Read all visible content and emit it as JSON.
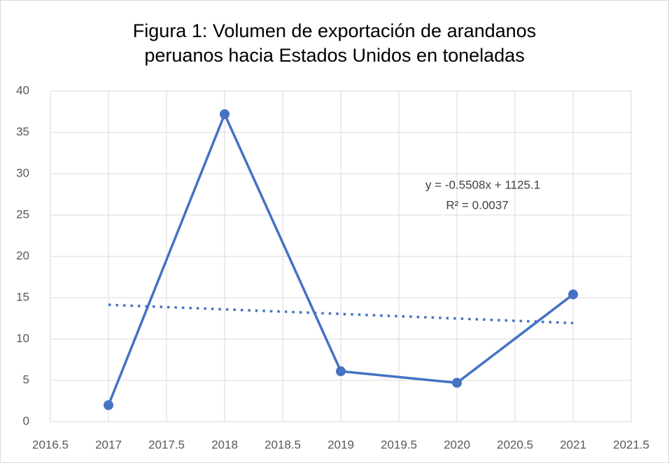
{
  "chart_data": {
    "type": "scatter_line",
    "title": [
      "Figura 1: Volumen de exportación de arandanos",
      "peruanos hacia Estados Unidos en toneladas"
    ],
    "x": [
      2017,
      2018,
      2019,
      2020,
      2021
    ],
    "series": [
      {
        "color": "#4472c4",
        "values": [
          2,
          37.2,
          6.1,
          4.7,
          15.4
        ]
      }
    ],
    "trendline": {
      "x": [
        2017,
        2021
      ],
      "values": [
        14.14,
        11.93
      ],
      "color": "#4472c4",
      "equation": "y = -0.5508x + 1125.1",
      "r2": "R² = 0.0037"
    },
    "xlim": [
      2016.5,
      2021.5
    ],
    "xticks": [
      2016.5,
      2017,
      2017.5,
      2018,
      2018.5,
      2019,
      2019.5,
      2020,
      2020.5,
      2021,
      2021.5
    ],
    "ylim": [
      0,
      40
    ],
    "yticks": [
      0,
      5,
      10,
      15,
      20,
      25,
      30,
      35,
      40
    ],
    "grid": true
  }
}
